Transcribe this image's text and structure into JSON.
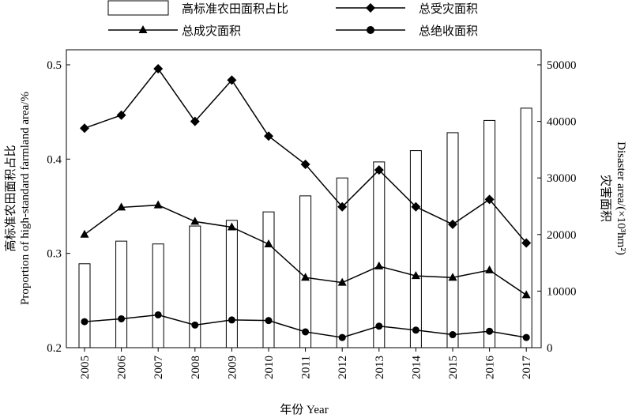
{
  "chart_data": {
    "type": "bar",
    "categories": [
      "2005",
      "2006",
      "2007",
      "2008",
      "2009",
      "2010",
      "2011",
      "2012",
      "2013",
      "2014",
      "2015",
      "2016",
      "2017"
    ],
    "xlabel": "年份 Year",
    "ylabel_left_cn": "高标准农田面积占比",
    "ylabel_left_en": "Proportion of high-standard farmland area/%",
    "ylabel_right_cn": "灾害面积",
    "ylabel_right_en": "Disaster area/(×10³hm²)",
    "left_axis": {
      "min": 0.2,
      "max": 0.5,
      "ticks": [
        "0.2",
        "0.3",
        "0.4",
        "0.5"
      ]
    },
    "right_axis": {
      "min": 0,
      "max": 50000,
      "ticks": [
        "0",
        "10000",
        "20000",
        "30000",
        "40000",
        "50000"
      ]
    },
    "legend_position": "top",
    "series": [
      {
        "name": "高标准农田面积占比",
        "type": "bar",
        "axis": "left",
        "values": [
          0.289,
          0.313,
          0.31,
          0.329,
          0.335,
          0.344,
          0.361,
          0.38,
          0.397,
          0.409,
          0.428,
          0.441,
          0.454
        ]
      },
      {
        "name": "总受灾面积",
        "type": "line",
        "marker": "diamond",
        "axis": "right",
        "values": [
          38800,
          41100,
          49300,
          40000,
          47300,
          37400,
          32400,
          24900,
          31400,
          24900,
          21800,
          26200,
          18500
        ]
      },
      {
        "name": "总成灾面积",
        "type": "line",
        "marker": "triangle",
        "axis": "right",
        "values": [
          20000,
          24800,
          25200,
          22300,
          21300,
          18300,
          12400,
          11500,
          14400,
          12700,
          12400,
          13700,
          9300
        ]
      },
      {
        "name": "总绝收面积",
        "type": "line",
        "marker": "circle",
        "axis": "right",
        "values": [
          4600,
          5100,
          5800,
          4000,
          4900,
          4800,
          2800,
          1800,
          3800,
          3100,
          2300,
          2900,
          1800
        ]
      }
    ]
  }
}
